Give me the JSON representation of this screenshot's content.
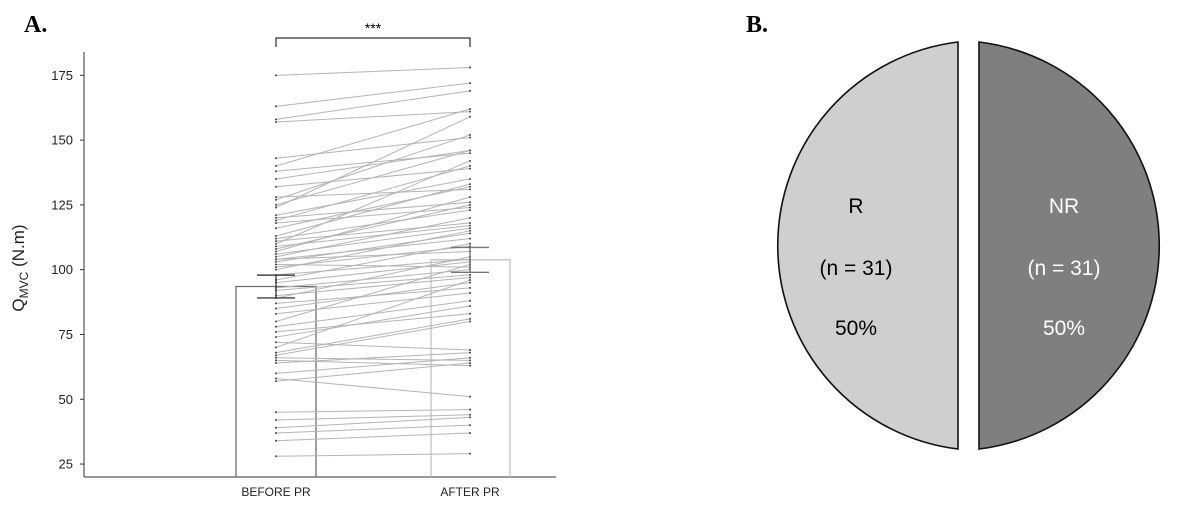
{
  "panels": {
    "a_label": "A.",
    "b_label": "B."
  },
  "chart_data": [
    {
      "type": "bar",
      "subtype": "paired-dot-plot with mean ± SEM bars",
      "title": "",
      "ylabel_main": "Q",
      "ylabel_sub": "MVC",
      "ylabel_units": " (N.m)",
      "xlabel": "",
      "categories": [
        "BEFORE PR",
        "AFTER PR"
      ],
      "ylim": [
        20,
        184
      ],
      "yticks": [
        25,
        50,
        75,
        100,
        125,
        150,
        175
      ],
      "means": [
        93.5,
        103.8
      ],
      "sem": [
        4.4,
        4.8
      ],
      "significance": "***",
      "bar_colors": [
        "#6e6e6e",
        "#c2c2c2"
      ],
      "line_color": "#b5b5b5",
      "pairs": [
        [
          175,
          178
        ],
        [
          163,
          172
        ],
        [
          158,
          169
        ],
        [
          157,
          161
        ],
        [
          143,
          151
        ],
        [
          140,
          162
        ],
        [
          138,
          145
        ],
        [
          135,
          146
        ],
        [
          132,
          139
        ],
        [
          128,
          131
        ],
        [
          127,
          152
        ],
        [
          125,
          146
        ],
        [
          124,
          159
        ],
        [
          121,
          135
        ],
        [
          120,
          126
        ],
        [
          119,
          140
        ],
        [
          118,
          124
        ],
        [
          116,
          132
        ],
        [
          113,
          133
        ],
        [
          112,
          123
        ],
        [
          111,
          118
        ],
        [
          110,
          142
        ],
        [
          109,
          117
        ],
        [
          108,
          125
        ],
        [
          107,
          128
        ],
        [
          106,
          116
        ],
        [
          105,
          120
        ],
        [
          104,
          112
        ],
        [
          104,
          107
        ],
        [
          103,
          114
        ],
        [
          102,
          101
        ],
        [
          101,
          109
        ],
        [
          100,
          115
        ],
        [
          98,
          104
        ],
        [
          96,
          110
        ],
        [
          95,
          103
        ],
        [
          93,
          100
        ],
        [
          92,
          98
        ],
        [
          90,
          97
        ],
        [
          89,
          105
        ],
        [
          87,
          93
        ],
        [
          85,
          95
        ],
        [
          83,
          91
        ],
        [
          80,
          102
        ],
        [
          78,
          88
        ],
        [
          76,
          83
        ],
        [
          74,
          86
        ],
        [
          72,
          69
        ],
        [
          70,
          96
        ],
        [
          68,
          81
        ],
        [
          67,
          80
        ],
        [
          66,
          65
        ],
        [
          65,
          63
        ],
        [
          64,
          68
        ],
        [
          60,
          66
        ],
        [
          58,
          51
        ],
        [
          57,
          64
        ],
        [
          45,
          46
        ],
        [
          42,
          44
        ],
        [
          39,
          43
        ],
        [
          37,
          40
        ],
        [
          34,
          37
        ],
        [
          28,
          29
        ]
      ]
    },
    {
      "type": "pie",
      "labels": [
        "R",
        "NR"
      ],
      "counts_text": [
        "(n = 31)",
        "(n = 31)"
      ],
      "percent_text": [
        "50%",
        "50%"
      ],
      "values": [
        50,
        50
      ],
      "colors": [
        "#d0cfd0",
        "#7f7f7f"
      ],
      "text_colors": [
        "#000000",
        "#ffffff"
      ]
    }
  ]
}
